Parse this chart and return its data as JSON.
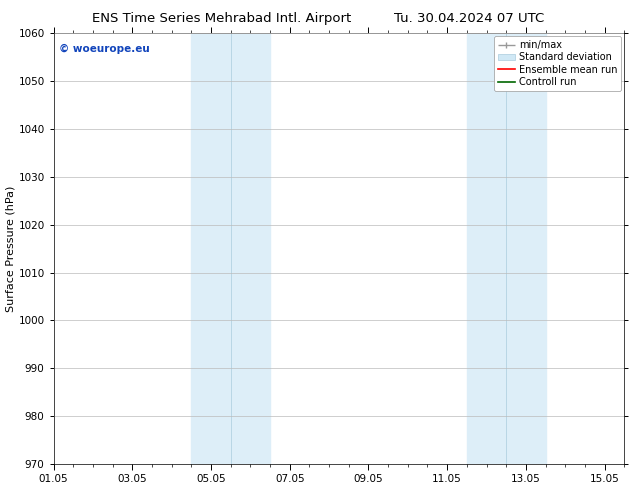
{
  "title_left": "ENS Time Series Mehrabad Intl. Airport",
  "title_right": "Tu. 30.04.2024 07 UTC",
  "ylabel": "Surface Pressure (hPa)",
  "ylim": [
    970,
    1060
  ],
  "yticks": [
    970,
    980,
    990,
    1000,
    1010,
    1020,
    1030,
    1040,
    1050,
    1060
  ],
  "xlim": [
    0,
    14.5
  ],
  "xtick_labels": [
    "01.05",
    "03.05",
    "05.05",
    "07.05",
    "09.05",
    "11.05",
    "13.05",
    "15.05"
  ],
  "xtick_positions": [
    0,
    2,
    4,
    6,
    8,
    10,
    12,
    14
  ],
  "shaded_bands": [
    {
      "x_start": 3.5,
      "x_end": 4.5,
      "color": "#ddeef8",
      "zorder": 1
    },
    {
      "x_start": 4.5,
      "x_end": 5.5,
      "color": "#ddeef8",
      "zorder": 1
    },
    {
      "x_start": 10.5,
      "x_end": 11.5,
      "color": "#ddeef8",
      "zorder": 1
    },
    {
      "x_start": 11.5,
      "x_end": 12.5,
      "color": "#ddeef8",
      "zorder": 1
    }
  ],
  "band_dividers": [
    4.5,
    11.5
  ],
  "watermark_text": "© woeurope.eu",
  "watermark_color": "#1144bb",
  "bg_color": "#ffffff",
  "plot_bg_color": "#ffffff",
  "grid_color": "#bbbbbb",
  "tick_label_fontsize": 7.5,
  "axis_label_fontsize": 8,
  "title_fontsize": 9.5,
  "ylabel_fontsize": 8
}
